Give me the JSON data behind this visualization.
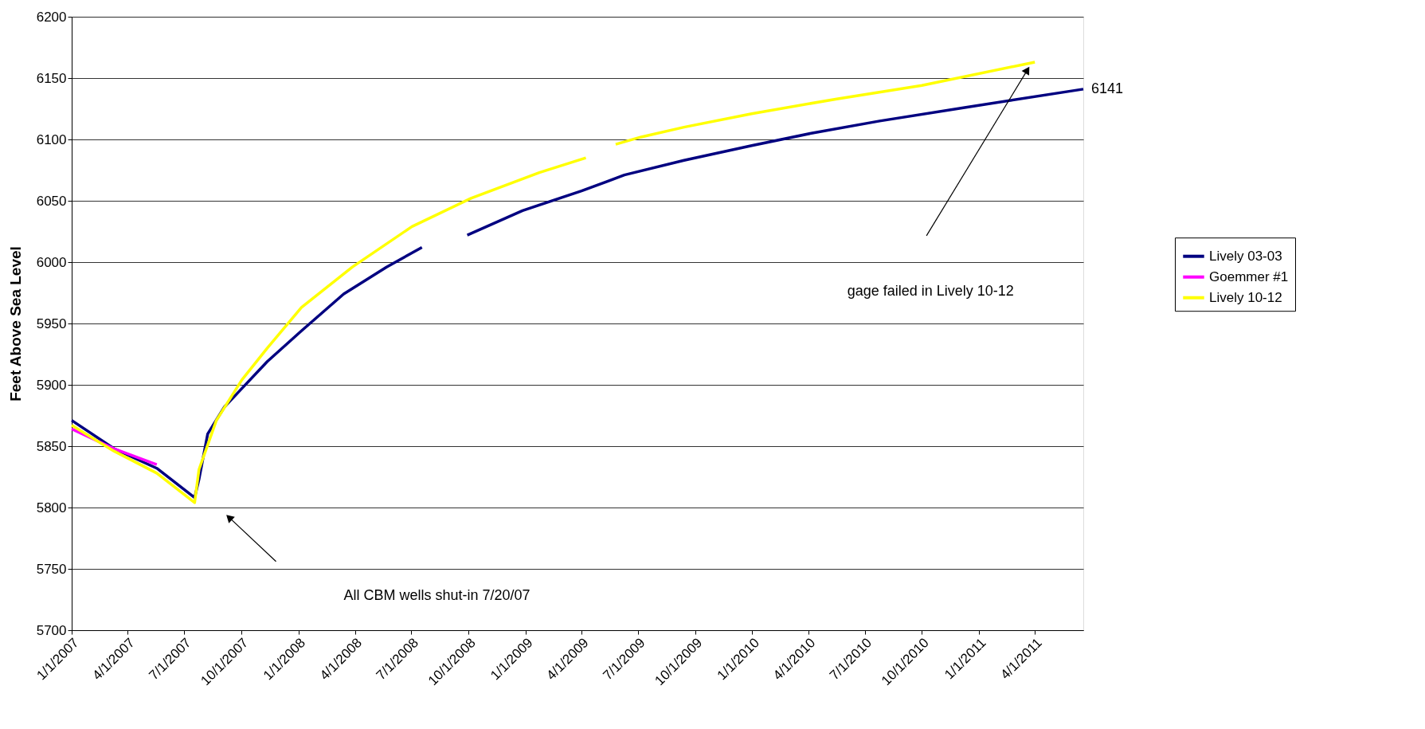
{
  "chart_data": {
    "type": "line",
    "ylabel": "Feet Above Sea Level",
    "ylim": [
      5700,
      6200
    ],
    "yticks": [
      5700,
      5750,
      5800,
      5850,
      5900,
      5950,
      6000,
      6050,
      6100,
      6150,
      6200
    ],
    "xlim": [
      "2007-01-01",
      "2011-06-18"
    ],
    "xticks": [
      {
        "value": "2007-01-01",
        "label": "1/1/2007"
      },
      {
        "value": "2007-04-01",
        "label": "4/1/2007"
      },
      {
        "value": "2007-07-01",
        "label": "7/1/2007"
      },
      {
        "value": "2007-10-01",
        "label": "10/1/2007"
      },
      {
        "value": "2008-01-01",
        "label": "1/1/2008"
      },
      {
        "value": "2008-04-01",
        "label": "4/1/2008"
      },
      {
        "value": "2008-07-01",
        "label": "7/1/2008"
      },
      {
        "value": "2008-10-01",
        "label": "10/1/2008"
      },
      {
        "value": "2009-01-01",
        "label": "1/1/2009"
      },
      {
        "value": "2009-04-01",
        "label": "4/1/2009"
      },
      {
        "value": "2009-07-01",
        "label": "7/1/2009"
      },
      {
        "value": "2009-10-01",
        "label": "10/1/2009"
      },
      {
        "value": "2010-01-01",
        "label": "1/1/2010"
      },
      {
        "value": "2010-04-01",
        "label": "4/1/2010"
      },
      {
        "value": "2010-07-01",
        "label": "7/1/2010"
      },
      {
        "value": "2010-10-01",
        "label": "10/1/2010"
      },
      {
        "value": "2011-01-01",
        "label": "1/1/2011"
      },
      {
        "value": "2011-04-01",
        "label": "4/1/2011"
      }
    ],
    "grid": "y",
    "legend": "right",
    "line_style": "solid",
    "marker": "none",
    "series": [
      {
        "name": "Lively 03-03",
        "color": "#000080",
        "x": [
          "2007-01-01",
          "2007-03-10",
          "2007-05-18",
          "2007-07-18",
          "2007-07-25",
          "2007-08-08",
          "2007-09-04",
          "2007-10-02",
          "2007-11-12",
          "2008-01-06",
          "2008-03-14",
          "2008-05-22",
          "2008-07-18",
          "2008-08-20",
          "2008-09-29",
          "2008-12-27",
          "2009-04-01",
          "2009-06-09",
          "2009-09-13",
          "2009-12-31",
          "2010-04-06",
          "2010-07-25",
          "2010-12-09",
          "2011-06-18"
        ],
        "values": [
          5871,
          5848,
          5832,
          5808,
          5823,
          5860,
          5882,
          5897,
          5919,
          5944,
          5974,
          5996,
          6012,
          null,
          6022,
          6042,
          6058,
          6071,
          6083,
          6095,
          6105,
          6115,
          6126,
          6141
        ]
      },
      {
        "name": "Goemmer #1",
        "color": "#ff00ff",
        "x": [
          "2007-01-01",
          "2007-03-10",
          "2007-05-18"
        ],
        "values": [
          5864,
          5848,
          5835
        ]
      },
      {
        "name": "Lively 10-12",
        "color": "#ffff00",
        "x": [
          "2007-01-01",
          "2007-03-10",
          "2007-05-18",
          "2007-07-18",
          "2007-07-25",
          "2007-08-22",
          "2007-10-02",
          "2007-11-12",
          "2008-01-06",
          "2008-03-28",
          "2008-07-02",
          "2008-10-05",
          "2009-01-23",
          "2009-04-08",
          "2009-05-01",
          "2009-05-26",
          "2009-07-06",
          "2009-09-13",
          "2009-12-31",
          "2010-05-17",
          "2010-10-01",
          "2011-04-01"
        ],
        "values": [
          5867,
          5846,
          5828,
          5804,
          5831,
          5871,
          5904,
          5930,
          5963,
          5996,
          6029,
          6052,
          6073,
          6085,
          null,
          6096,
          6102,
          6110,
          6121,
          6133,
          6144,
          6163
        ]
      }
    ],
    "annotations": [
      {
        "text": "6141",
        "x": "2011-06-18",
        "y": 6141
      },
      "gage failed in Lively 10-12",
      "All CBM wells shut-in 7/20/07"
    ]
  }
}
